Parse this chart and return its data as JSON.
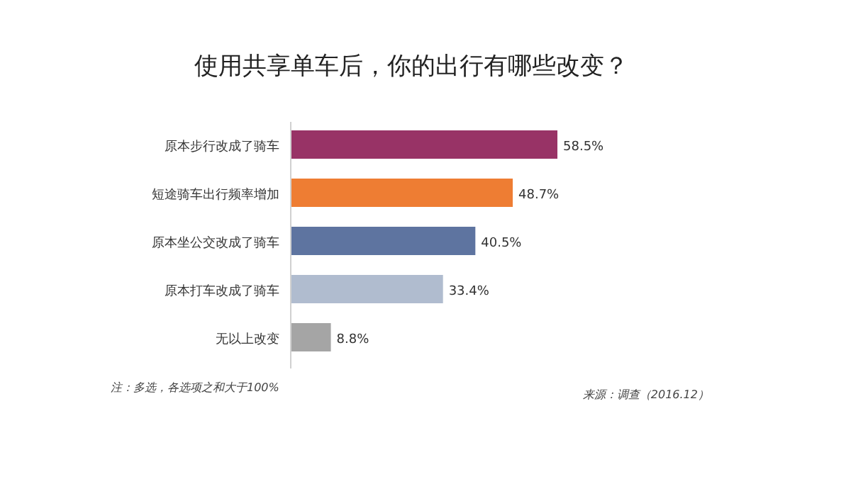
{
  "chart_data": {
    "type": "bar",
    "orientation": "horizontal",
    "title": "使用共享单车后，你的出行有哪些改变？",
    "categories": [
      "原本步行改成了骑车",
      "短途骑车出行频率增加",
      "原本坐公交改成了骑车",
      "原本打车改成了骑车",
      "无以上改变"
    ],
    "values": [
      58.5,
      48.7,
      40.5,
      33.4,
      8.8
    ],
    "colors": [
      "#983366",
      "#ee7d33",
      "#5e74a0",
      "#b0bccf",
      "#a5a5a5"
    ],
    "value_labels": [
      "58.5%",
      "48.7%",
      "40.5%",
      "33.4%",
      "8.8%"
    ],
    "annotations": [
      "注：多选，各选项之和大于100%",
      "来源：调查（2016.12）"
    ]
  }
}
